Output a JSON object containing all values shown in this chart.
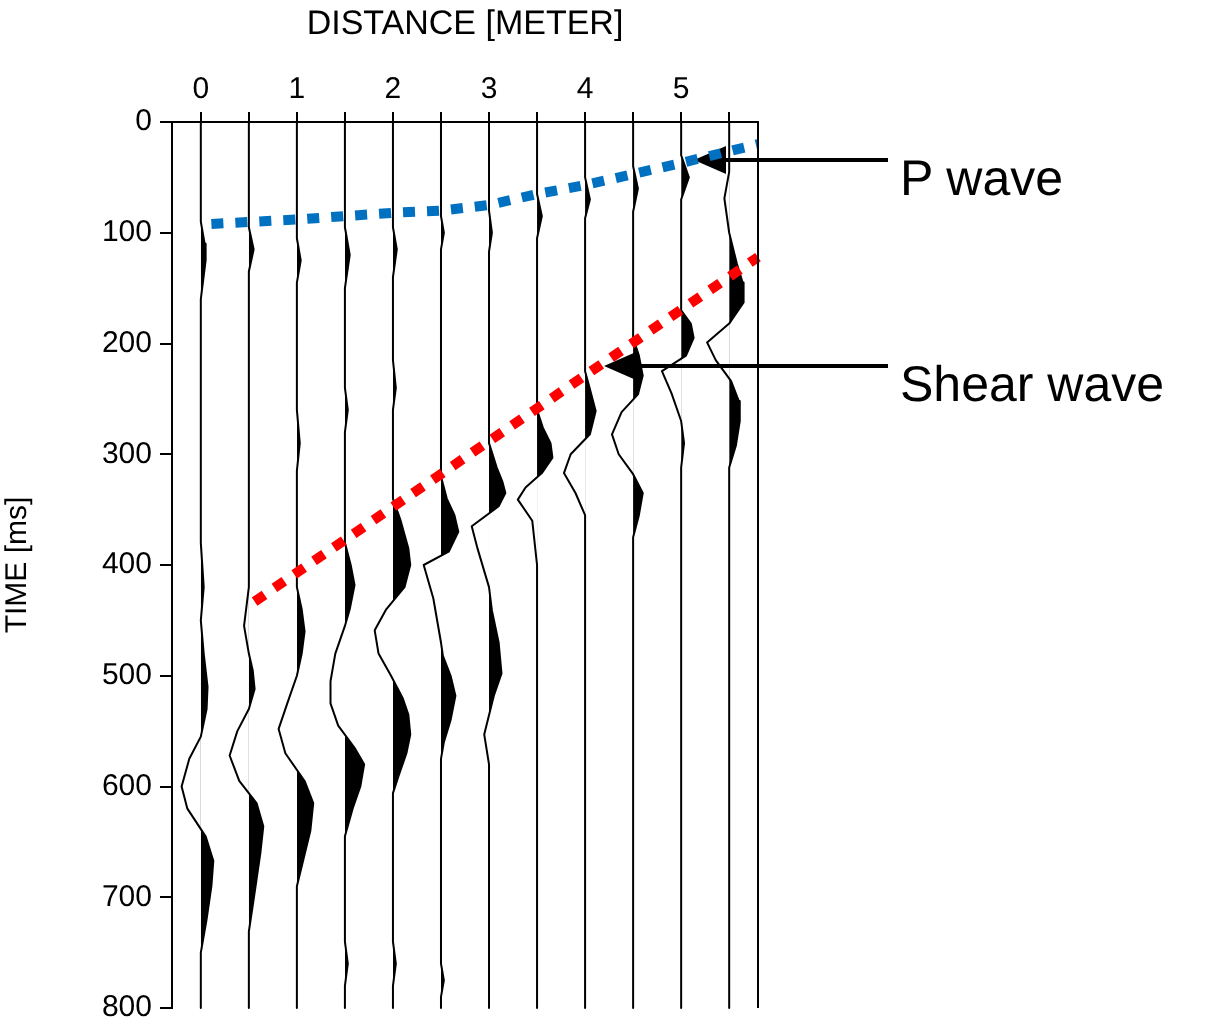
{
  "chart_data": {
    "type": "area",
    "xlabel": "DISTANCE [METER]",
    "ylabel": "TIME [ms]",
    "xlim": [
      -0.3,
      5.8
    ],
    "xticks": [
      0,
      {
        "value": 0.5,
        "label": null
      },
      1,
      {
        "value": 1.5,
        "label": null
      },
      2,
      {
        "value": 2.5,
        "label": null
      },
      3,
      {
        "value": 3.5,
        "label": null
      },
      4,
      {
        "value": 4.5,
        "label": null
      },
      5,
      {
        "value": 5.5,
        "label": null
      }
    ],
    "ylim": [
      800,
      0
    ],
    "yticks": [
      0,
      100,
      200,
      300,
      400,
      500,
      600,
      700,
      800
    ],
    "marker": "none",
    "annotations": [
      "P wave",
      "Shear wave"
    ],
    "series": [
      {
        "color": "#000000",
        "line_style": "solid",
        "values": [
          0,
          90,
          110,
          125,
          160,
          380,
          420,
          450,
          480,
          510,
          530,
          555,
          575,
          600,
          620,
          645,
          667,
          690,
          720,
          750,
          800
        ],
        "x": [
          0,
          0,
          0.04,
          0.05,
          0,
          0,
          0.03,
          0,
          0.03,
          0.07,
          0.06,
          0,
          -0.12,
          -0.2,
          -0.14,
          0.05,
          0.13,
          0.11,
          0.06,
          0,
          0
        ]
      },
      {
        "color": "#000000",
        "line_style": "solid",
        "values": [
          0,
          95,
          115,
          135,
          420,
          455,
          480,
          495,
          512,
          530,
          550,
          572,
          595,
          615,
          636,
          660,
          690,
          731,
          800
        ],
        "x": [
          0.5,
          0.5,
          0.55,
          0.5,
          0.5,
          0.45,
          0.5,
          0.54,
          0.56,
          0.5,
          0.38,
          0.3,
          0.4,
          0.58,
          0.65,
          0.62,
          0.57,
          0.5,
          0.5
        ]
      },
      {
        "color": "#000000",
        "line_style": "solid",
        "values": [
          0,
          105,
          125,
          145,
          260,
          290,
          315,
          420,
          440,
          460,
          480,
          500,
          525,
          548,
          570,
          595,
          615,
          640,
          665,
          690,
          800
        ],
        "x": [
          1,
          1,
          1.04,
          1,
          1,
          1.03,
          1,
          1,
          1.05,
          1.08,
          1.05,
          1,
          0.9,
          0.81,
          0.88,
          1.08,
          1.17,
          1.14,
          1.07,
          1,
          1
        ]
      },
      {
        "color": "#000000",
        "line_style": "solid",
        "values": [
          0,
          95,
          120,
          150,
          240,
          260,
          280,
          380,
          400,
          418,
          440,
          455,
          480,
          505,
          525,
          545,
          565,
          580,
          600,
          620,
          645,
          740,
          760,
          780,
          800
        ],
        "x": [
          1.5,
          1.5,
          1.55,
          1.5,
          1.5,
          1.53,
          1.5,
          1.5,
          1.56,
          1.6,
          1.55,
          1.5,
          1.4,
          1.35,
          1.35,
          1.43,
          1.6,
          1.7,
          1.66,
          1.58,
          1.5,
          1.5,
          1.53,
          1.5,
          1.5
        ]
      },
      {
        "color": "#000000",
        "line_style": "solid",
        "values": [
          0,
          95,
          115,
          140,
          215,
          240,
          260,
          340,
          360,
          385,
          400,
          420,
          440,
          459,
          480,
          500,
          520,
          535,
          553,
          570,
          590,
          606,
          740,
          760,
          780,
          800
        ],
        "x": [
          2,
          2,
          2.04,
          2,
          2,
          2.03,
          2,
          2,
          2.08,
          2.16,
          2.18,
          2.12,
          1.93,
          1.81,
          1.85,
          1.98,
          2.1,
          2.16,
          2.18,
          2.14,
          2.06,
          2,
          2,
          2.03,
          2,
          2
        ]
      },
      {
        "color": "#000000",
        "line_style": "solid",
        "values": [
          0,
          85,
          100,
          115,
          320,
          340,
          355,
          370,
          388,
          400,
          430,
          470,
          482,
          500,
          518,
          540,
          560,
          575,
          760,
          775,
          790,
          800
        ],
        "x": [
          2.5,
          2.5,
          2.53,
          2.5,
          2.5,
          2.56,
          2.64,
          2.68,
          2.58,
          2.32,
          2.42,
          2.5,
          2.52,
          2.6,
          2.65,
          2.6,
          2.53,
          2.5,
          2.5,
          2.53,
          2.5,
          2.5
        ]
      },
      {
        "color": "#000000",
        "line_style": "solid",
        "values": [
          0,
          80,
          100,
          117,
          290,
          312,
          325,
          335,
          347,
          365,
          385,
          420,
          441,
          470,
          498,
          518,
          553,
          580,
          800
        ],
        "x": [
          3,
          3,
          3.03,
          3,
          3,
          3.08,
          3.14,
          3.17,
          3.1,
          2.82,
          2.88,
          3,
          3.03,
          3.1,
          3.13,
          3.05,
          2.95,
          3,
          3
        ]
      },
      {
        "color": "#000000",
        "line_style": "solid",
        "values": [
          0,
          65,
          85,
          105,
          260,
          276,
          290,
          303,
          317,
          330,
          341,
          360,
          400,
          800
        ],
        "x": [
          3.5,
          3.5,
          3.55,
          3.5,
          3.5,
          3.56,
          3.64,
          3.66,
          3.55,
          3.38,
          3.3,
          3.45,
          3.5,
          3.5
        ]
      },
      {
        "color": "#000000",
        "line_style": "solid",
        "values": [
          0,
          50,
          70,
          87,
          225,
          241,
          261,
          282,
          300,
          317,
          335,
          355,
          800
        ],
        "x": [
          4,
          4,
          4.05,
          4,
          4,
          4.05,
          4.11,
          4.05,
          3.85,
          3.78,
          3.9,
          4,
          4
        ]
      },
      {
        "color": "#000000",
        "line_style": "solid",
        "values": [
          0,
          40,
          60,
          81,
          195,
          211,
          229,
          246,
          262,
          282,
          300,
          318,
          335,
          355,
          375,
          800
        ],
        "x": [
          4.5,
          4.5,
          4.55,
          4.5,
          4.5,
          4.56,
          4.6,
          4.55,
          4.38,
          4.28,
          4.35,
          4.5,
          4.6,
          4.56,
          4.5,
          4.5
        ]
      },
      {
        "color": "#000000",
        "line_style": "solid",
        "values": [
          0,
          30,
          50,
          70,
          170,
          182,
          195,
          211,
          225,
          245,
          270,
          290,
          312,
          330,
          800
        ],
        "x": [
          5,
          5,
          5.08,
          5,
          5,
          5.1,
          5.13,
          5.05,
          4.8,
          4.9,
          5,
          5.03,
          5,
          5,
          5
        ]
      },
      {
        "color": "#000000",
        "line_style": "solid",
        "values": [
          0,
          25,
          45,
          69,
          100,
          128,
          145,
          163,
          182,
          199,
          215,
          234,
          252,
          270,
          292,
          312,
          330,
          800
        ],
        "x": [
          5.5,
          5.5,
          5.5,
          5.45,
          5.5,
          5.58,
          5.64,
          5.65,
          5.5,
          5.27,
          5.36,
          5.52,
          5.6,
          5.61,
          5.57,
          5.5,
          5.5,
          5.5
        ]
      },
      {
        "type": "line",
        "color": "#0070c0",
        "line_style": "dotted",
        "values": [
          92,
          88,
          82,
          80,
          75,
          65,
          57,
          47,
          37,
          20
        ],
        "x": [
          0.11,
          1,
          2,
          2.5,
          3,
          3.5,
          4,
          4.5,
          5,
          5.8
        ]
      },
      {
        "type": "line",
        "color": "#ff0000",
        "line_style": "dotted",
        "values": [
          433,
          122
        ],
        "x": [
          0.56,
          5.8
        ]
      }
    ]
  }
}
